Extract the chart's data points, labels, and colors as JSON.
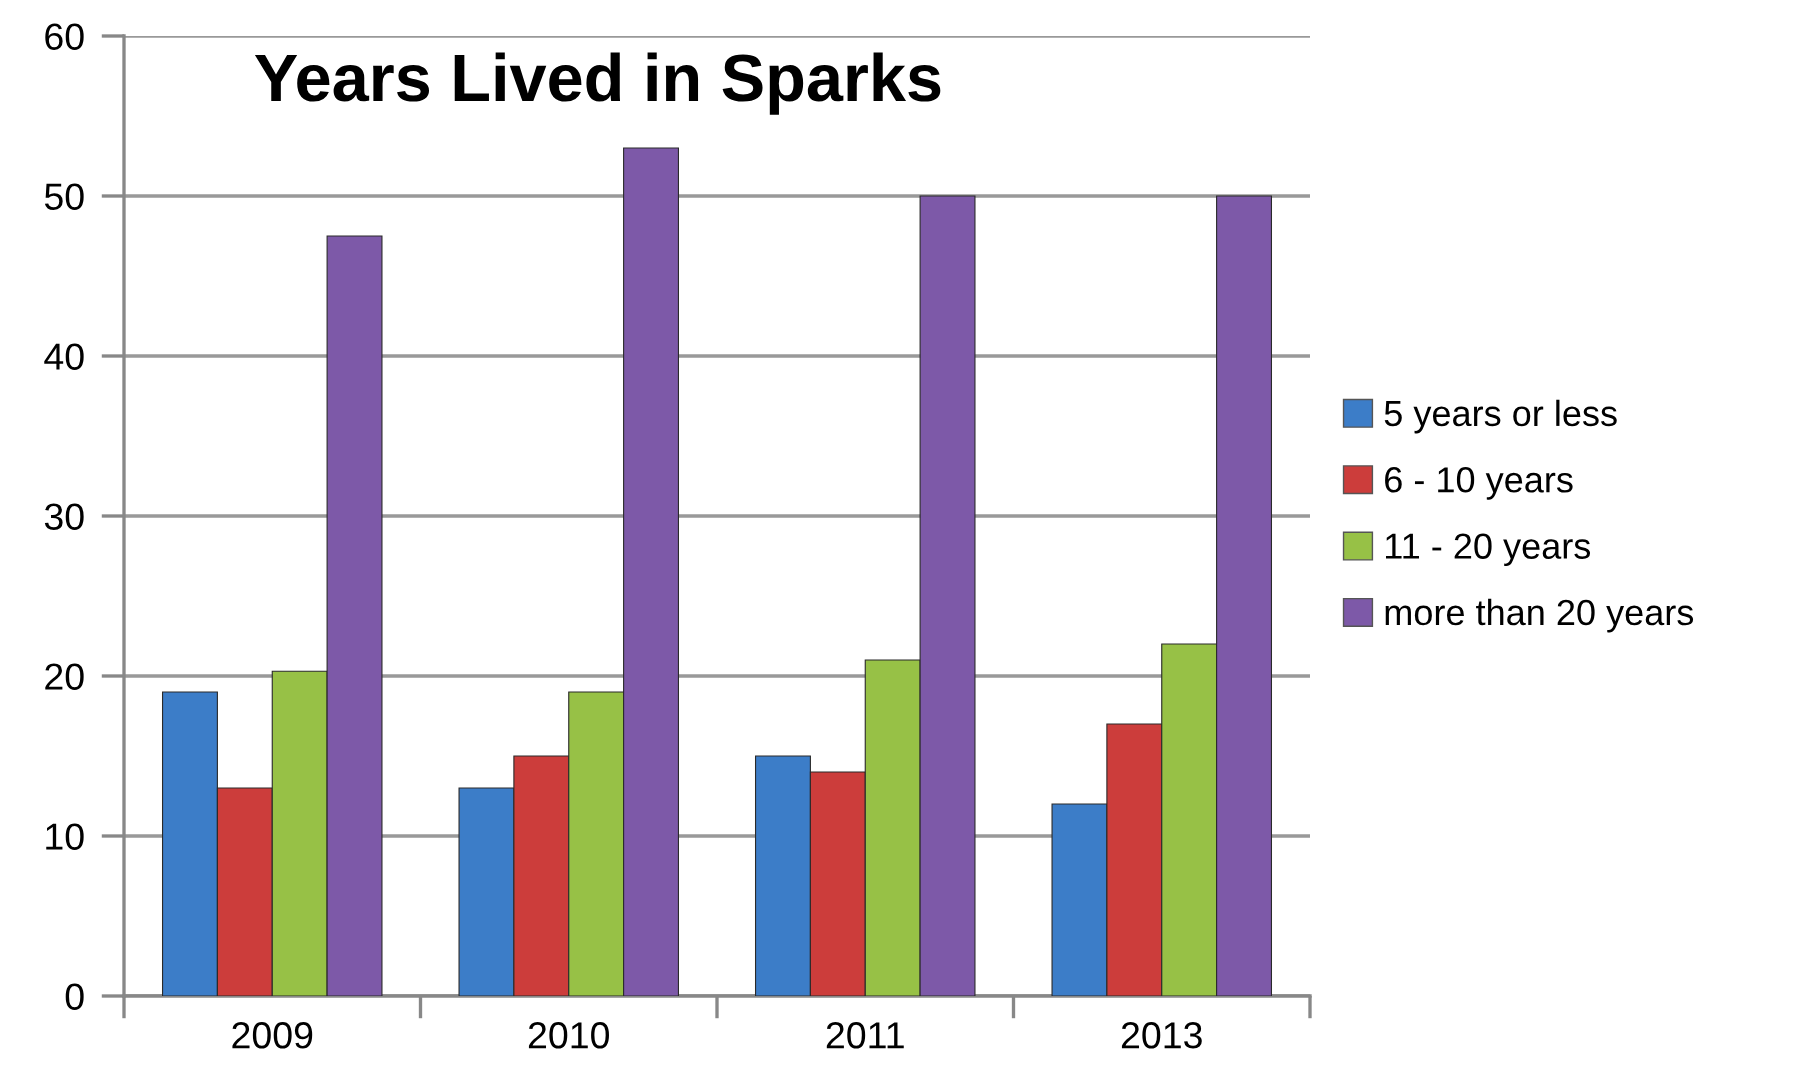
{
  "chart_data": {
    "type": "bar",
    "title": "Years Lived in Sparks",
    "categories": [
      "2009",
      "2010",
      "2011",
      "2013"
    ],
    "series": [
      {
        "name": "5 years or less",
        "color": "#3c7dc8",
        "values": [
          19,
          13,
          15,
          12
        ]
      },
      {
        "name": "6 - 10 years",
        "color": "#cc3d3b",
        "values": [
          13,
          15,
          14,
          17
        ]
      },
      {
        "name": "11 - 20 years",
        "color": "#97c146",
        "values": [
          20.3,
          19,
          21,
          22
        ]
      },
      {
        "name": "more than 20 years",
        "color": "#7d59a8",
        "values": [
          47.5,
          53,
          50,
          50
        ]
      }
    ],
    "ylim": [
      0,
      60
    ],
    "yticks": [
      0,
      10,
      20,
      30,
      40,
      50,
      60
    ],
    "grid": "y",
    "legend": "right"
  }
}
